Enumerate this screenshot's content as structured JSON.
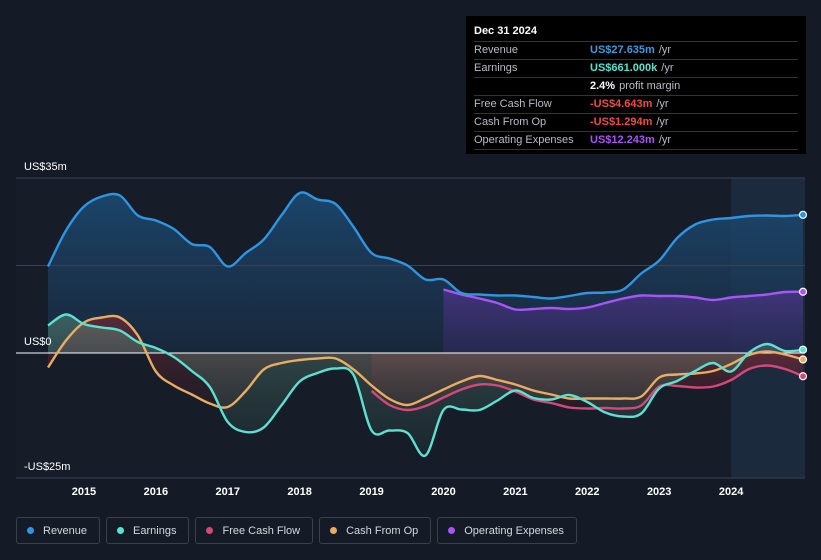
{
  "tooltip": {
    "date": "Dec 31 2024",
    "rows": [
      {
        "label": "Revenue",
        "value": "US$27.635m",
        "unit": "/yr",
        "color": "#3b9ae1"
      },
      {
        "label": "Earnings",
        "value": "US$661.000k",
        "unit": "/yr",
        "color": "#5ce0cf"
      },
      {
        "label": "",
        "value": "2.4%",
        "unit": "profit margin",
        "color": "#ffffff"
      },
      {
        "label": "Free Cash Flow",
        "value": "-US$4.643m",
        "unit": "/yr",
        "color": "#ef4b4b"
      },
      {
        "label": "Cash From Op",
        "value": "-US$1.294m",
        "unit": "/yr",
        "color": "#ef4b4b"
      },
      {
        "label": "Operating Expenses",
        "value": "US$12.243m",
        "unit": "/yr",
        "color": "#a855f7"
      }
    ]
  },
  "legend": [
    {
      "label": "Revenue",
      "color": "#2f95e0"
    },
    {
      "label": "Earnings",
      "color": "#5ce0cf"
    },
    {
      "label": "Free Cash Flow",
      "color": "#d6477a"
    },
    {
      "label": "Cash From Op",
      "color": "#e8ad61"
    },
    {
      "label": "Operating Expenses",
      "color": "#a855f7"
    }
  ],
  "chart_data": {
    "type": "area",
    "title": "",
    "ylabels": {
      "top": "US$35m",
      "zero": "US$0",
      "bottom": "-US$25m"
    },
    "ylim": [
      -25,
      35
    ],
    "xlim": [
      2014.5,
      2025.0
    ],
    "x_ticks": [
      2015,
      2016,
      2017,
      2018,
      2019,
      2020,
      2021,
      2022,
      2023,
      2024
    ],
    "x_tick_labels": [
      "2015",
      "2016",
      "2017",
      "2018",
      "2019",
      "2020",
      "2021",
      "2022",
      "2023",
      "2024"
    ],
    "forecast_start": 2024.0,
    "series": [
      {
        "name": "Revenue",
        "color": "#2f95e0",
        "points": [
          [
            2014.5,
            17.3
          ],
          [
            2014.75,
            24.5
          ],
          [
            2015.0,
            29.3
          ],
          [
            2015.25,
            31.3
          ],
          [
            2015.5,
            31.5
          ],
          [
            2015.75,
            27.5
          ],
          [
            2016.0,
            26.5
          ],
          [
            2016.25,
            24.8
          ],
          [
            2016.5,
            21.8
          ],
          [
            2016.75,
            21.2
          ],
          [
            2017.0,
            17.3
          ],
          [
            2017.25,
            20.0
          ],
          [
            2017.5,
            22.7
          ],
          [
            2017.75,
            27.6
          ],
          [
            2018.0,
            32.0
          ],
          [
            2018.25,
            30.7
          ],
          [
            2018.5,
            29.8
          ],
          [
            2018.75,
            25.2
          ],
          [
            2019.0,
            20.0
          ],
          [
            2019.25,
            18.9
          ],
          [
            2019.5,
            17.5
          ],
          [
            2019.75,
            14.7
          ],
          [
            2020.0,
            14.7
          ],
          [
            2020.25,
            12.0
          ],
          [
            2020.5,
            11.7
          ],
          [
            2020.75,
            11.5
          ],
          [
            2021.0,
            11.5
          ],
          [
            2021.25,
            11.2
          ],
          [
            2021.5,
            10.9
          ],
          [
            2021.75,
            11.4
          ],
          [
            2022.0,
            12.0
          ],
          [
            2022.25,
            12.1
          ],
          [
            2022.5,
            12.7
          ],
          [
            2022.75,
            15.9
          ],
          [
            2023.0,
            18.5
          ],
          [
            2023.25,
            23.0
          ],
          [
            2023.5,
            25.7
          ],
          [
            2023.75,
            26.7
          ],
          [
            2024.0,
            27.0
          ],
          [
            2024.25,
            27.4
          ],
          [
            2024.5,
            27.5
          ],
          [
            2024.75,
            27.4
          ],
          [
            2025.0,
            27.635
          ]
        ]
      },
      {
        "name": "Earnings",
        "color": "#5ce0cf",
        "points": [
          [
            2014.5,
            5.5
          ],
          [
            2014.75,
            7.7
          ],
          [
            2015.0,
            5.8
          ],
          [
            2015.25,
            5.1
          ],
          [
            2015.5,
            4.5
          ],
          [
            2015.75,
            2.2
          ],
          [
            2016.0,
            1.0
          ],
          [
            2016.25,
            -0.8
          ],
          [
            2016.5,
            -3.6
          ],
          [
            2016.75,
            -6.8
          ],
          [
            2017.0,
            -13.8
          ],
          [
            2017.25,
            -15.8
          ],
          [
            2017.5,
            -14.9
          ],
          [
            2017.75,
            -10.4
          ],
          [
            2018.0,
            -5.7
          ],
          [
            2018.25,
            -4.0
          ],
          [
            2018.5,
            -3.1
          ],
          [
            2018.75,
            -4.4
          ],
          [
            2019.0,
            -15.5
          ],
          [
            2019.25,
            -15.5
          ],
          [
            2019.5,
            -16.0
          ],
          [
            2019.75,
            -20.5
          ],
          [
            2020.0,
            -11.4
          ],
          [
            2020.25,
            -11.3
          ],
          [
            2020.5,
            -11.4
          ],
          [
            2020.75,
            -9.5
          ],
          [
            2021.0,
            -7.5
          ],
          [
            2021.25,
            -9.0
          ],
          [
            2021.5,
            -9.3
          ],
          [
            2021.75,
            -8.4
          ],
          [
            2022.0,
            -9.8
          ],
          [
            2022.25,
            -11.9
          ],
          [
            2022.5,
            -12.7
          ],
          [
            2022.75,
            -12.1
          ],
          [
            2023.0,
            -7.1
          ],
          [
            2023.25,
            -5.6
          ],
          [
            2023.5,
            -3.6
          ],
          [
            2023.75,
            -2.0
          ],
          [
            2024.0,
            -3.7
          ],
          [
            2024.25,
            0.1
          ],
          [
            2024.5,
            1.8
          ],
          [
            2024.75,
            0.4
          ],
          [
            2025.0,
            0.661
          ]
        ]
      },
      {
        "name": "Free Cash Flow",
        "color": "#d6477a",
        "points": [
          [
            2019.0,
            -7.6
          ],
          [
            2019.25,
            -10.4
          ],
          [
            2019.5,
            -11.4
          ],
          [
            2019.75,
            -10.6
          ],
          [
            2020.0,
            -8.9
          ],
          [
            2020.25,
            -7.3
          ],
          [
            2020.5,
            -6.3
          ],
          [
            2020.75,
            -6.5
          ],
          [
            2021.0,
            -7.7
          ],
          [
            2021.25,
            -9.3
          ],
          [
            2021.5,
            -10.0
          ],
          [
            2021.75,
            -10.9
          ],
          [
            2022.0,
            -11.1
          ],
          [
            2022.25,
            -11.0
          ],
          [
            2022.5,
            -11.1
          ],
          [
            2022.75,
            -10.5
          ],
          [
            2023.0,
            -6.7
          ],
          [
            2023.25,
            -6.6
          ],
          [
            2023.5,
            -6.9
          ],
          [
            2023.75,
            -6.7
          ],
          [
            2024.0,
            -5.4
          ],
          [
            2024.25,
            -3.2
          ],
          [
            2024.5,
            -2.5
          ],
          [
            2024.75,
            -3.2
          ],
          [
            2025.0,
            -4.643
          ]
        ]
      },
      {
        "name": "Cash From Op",
        "color": "#e8ad61",
        "points": [
          [
            2014.5,
            -2.9
          ],
          [
            2014.75,
            2.5
          ],
          [
            2015.0,
            6.1
          ],
          [
            2015.25,
            7.1
          ],
          [
            2015.5,
            7.1
          ],
          [
            2015.75,
            3.5
          ],
          [
            2016.0,
            -3.7
          ],
          [
            2016.25,
            -6.5
          ],
          [
            2016.5,
            -8.3
          ],
          [
            2016.75,
            -10.1
          ],
          [
            2017.0,
            -10.8
          ],
          [
            2017.25,
            -7.6
          ],
          [
            2017.5,
            -3.3
          ],
          [
            2017.75,
            -2.0
          ],
          [
            2018.0,
            -1.4
          ],
          [
            2018.25,
            -1.1
          ],
          [
            2018.5,
            -1.1
          ],
          [
            2018.75,
            -3.3
          ],
          [
            2019.0,
            -6.5
          ],
          [
            2019.25,
            -9.2
          ],
          [
            2019.5,
            -10.4
          ],
          [
            2019.75,
            -9.0
          ],
          [
            2020.0,
            -7.3
          ],
          [
            2020.25,
            -5.7
          ],
          [
            2020.5,
            -4.6
          ],
          [
            2020.75,
            -5.4
          ],
          [
            2021.0,
            -6.3
          ],
          [
            2021.25,
            -7.5
          ],
          [
            2021.5,
            -8.3
          ],
          [
            2021.75,
            -9.1
          ],
          [
            2022.0,
            -9.1
          ],
          [
            2022.25,
            -9.1
          ],
          [
            2022.5,
            -9.1
          ],
          [
            2022.75,
            -8.7
          ],
          [
            2023.0,
            -4.9
          ],
          [
            2023.25,
            -4.3
          ],
          [
            2023.5,
            -4.1
          ],
          [
            2023.75,
            -3.6
          ],
          [
            2024.0,
            -2.2
          ],
          [
            2024.25,
            -0.4
          ],
          [
            2024.5,
            0.3
          ],
          [
            2024.75,
            -0.3
          ],
          [
            2025.0,
            -1.294
          ]
        ]
      },
      {
        "name": "Operating Expenses",
        "color": "#a855f7",
        "points": [
          [
            2020.0,
            12.7
          ],
          [
            2020.25,
            11.7
          ],
          [
            2020.5,
            10.9
          ],
          [
            2020.75,
            10.0
          ],
          [
            2021.0,
            8.7
          ],
          [
            2021.25,
            8.8
          ],
          [
            2021.5,
            9.0
          ],
          [
            2021.75,
            8.8
          ],
          [
            2022.0,
            9.1
          ],
          [
            2022.25,
            10.0
          ],
          [
            2022.5,
            10.9
          ],
          [
            2022.75,
            11.5
          ],
          [
            2023.0,
            11.4
          ],
          [
            2023.25,
            11.4
          ],
          [
            2023.5,
            11.1
          ],
          [
            2023.75,
            10.6
          ],
          [
            2024.0,
            11.1
          ],
          [
            2024.25,
            11.4
          ],
          [
            2024.5,
            11.7
          ],
          [
            2024.75,
            12.2
          ],
          [
            2025.0,
            12.243
          ]
        ]
      }
    ]
  }
}
